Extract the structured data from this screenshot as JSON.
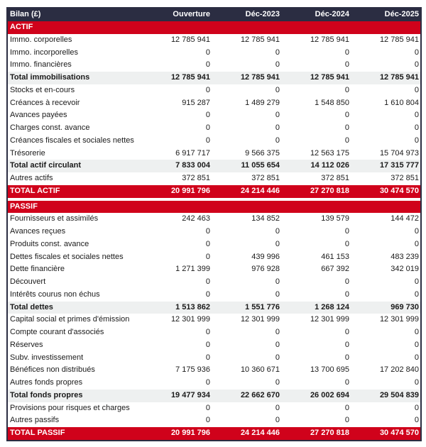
{
  "header": {
    "label": "Bilan (£)",
    "columns": [
      "Ouverture",
      "Déc-2023",
      "Déc-2024",
      "Déc-2025"
    ]
  },
  "colors": {
    "header": "#2b2d42",
    "accent": "#d0021b",
    "total_bg": "#eef0f0"
  },
  "actif": {
    "title": "ACTIF",
    "rows": [
      {
        "label": "Immo. corporelles",
        "values": [
          "12 785 941",
          "12 785 941",
          "12 785 941",
          "12 785 941"
        ],
        "type": "normal"
      },
      {
        "label": "Immo. incorporelles",
        "values": [
          "0",
          "0",
          "0",
          "0"
        ],
        "type": "normal"
      },
      {
        "label": "Immo. financières",
        "values": [
          "0",
          "0",
          "0",
          "0"
        ],
        "type": "normal"
      },
      {
        "label": "Total immobilisations",
        "values": [
          "12 785 941",
          "12 785 941",
          "12 785 941",
          "12 785 941"
        ],
        "type": "total"
      },
      {
        "label": "Stocks et en-cours",
        "values": [
          "0",
          "0",
          "0",
          "0"
        ],
        "type": "normal"
      },
      {
        "label": "Créances à recevoir",
        "values": [
          "915 287",
          "1 489 279",
          "1 548 850",
          "1 610 804"
        ],
        "type": "normal"
      },
      {
        "label": "Avances payées",
        "values": [
          "0",
          "0",
          "0",
          "0"
        ],
        "type": "normal"
      },
      {
        "label": "Charges const. avance",
        "values": [
          "0",
          "0",
          "0",
          "0"
        ],
        "type": "normal"
      },
      {
        "label": "Créances fiscales et sociales nettes",
        "values": [
          "0",
          "0",
          "0",
          "0"
        ],
        "type": "normal"
      },
      {
        "label": "Trésorerie",
        "values": [
          "6 917 717",
          "9 566 375",
          "12 563 175",
          "15 704 973"
        ],
        "type": "normal"
      },
      {
        "label": "Total actif circulant",
        "values": [
          "7 833 004",
          "11 055 654",
          "14 112 026",
          "17 315 777"
        ],
        "type": "total"
      },
      {
        "label": "Autres actifs",
        "values": [
          "372 851",
          "372 851",
          "372 851",
          "372 851"
        ],
        "type": "normal"
      },
      {
        "label": "TOTAL ACTIF",
        "values": [
          "20 991 796",
          "24 214 446",
          "27 270 818",
          "30 474 570"
        ],
        "type": "grand"
      }
    ]
  },
  "passif": {
    "title": "PASSIF",
    "rows": [
      {
        "label": "Fournisseurs et assimilés",
        "values": [
          "242 463",
          "134 852",
          "139 579",
          "144 472"
        ],
        "type": "normal"
      },
      {
        "label": "Avances reçues",
        "values": [
          "0",
          "0",
          "0",
          "0"
        ],
        "type": "normal"
      },
      {
        "label": "Produits const. avance",
        "values": [
          "0",
          "0",
          "0",
          "0"
        ],
        "type": "normal"
      },
      {
        "label": "Dettes fiscales et sociales nettes",
        "values": [
          "0",
          "439 996",
          "461 153",
          "483 239"
        ],
        "type": "normal"
      },
      {
        "label": "Dette financière",
        "values": [
          "1 271 399",
          "976 928",
          "667 392",
          "342 019"
        ],
        "type": "normal"
      },
      {
        "label": "Découvert",
        "values": [
          "0",
          "0",
          "0",
          "0"
        ],
        "type": "normal"
      },
      {
        "label": "Intérêts courus non échus",
        "values": [
          "0",
          "0",
          "0",
          "0"
        ],
        "type": "normal"
      },
      {
        "label": "Total dettes",
        "values": [
          "1 513 862",
          "1 551 776",
          "1 268 124",
          "969 730"
        ],
        "type": "total"
      },
      {
        "label": "Capital social et primes d'émission",
        "values": [
          "12 301 999",
          "12 301 999",
          "12 301 999",
          "12 301 999"
        ],
        "type": "normal"
      },
      {
        "label": "Compte courant d'associés",
        "values": [
          "0",
          "0",
          "0",
          "0"
        ],
        "type": "normal"
      },
      {
        "label": "Réserves",
        "values": [
          "0",
          "0",
          "0",
          "0"
        ],
        "type": "normal"
      },
      {
        "label": "Subv. investissement",
        "values": [
          "0",
          "0",
          "0",
          "0"
        ],
        "type": "normal"
      },
      {
        "label": "Bénéfices non distribués",
        "values": [
          "7 175 936",
          "10 360 671",
          "13 700 695",
          "17 202 840"
        ],
        "type": "normal"
      },
      {
        "label": "Autres fonds propres",
        "values": [
          "0",
          "0",
          "0",
          "0"
        ],
        "type": "normal"
      },
      {
        "label": "Total fonds propres",
        "values": [
          "19 477 934",
          "22 662 670",
          "26 002 694",
          "29 504 839"
        ],
        "type": "total"
      },
      {
        "label": "Provisions pour risques et charges",
        "values": [
          "0",
          "0",
          "0",
          "0"
        ],
        "type": "normal"
      },
      {
        "label": "Autres passifs",
        "values": [
          "0",
          "0",
          "0",
          "0"
        ],
        "type": "normal"
      },
      {
        "label": "TOTAL PASSIF",
        "values": [
          "20 991 796",
          "24 214 446",
          "27 270 818",
          "30 474 570"
        ],
        "type": "grand"
      }
    ]
  }
}
